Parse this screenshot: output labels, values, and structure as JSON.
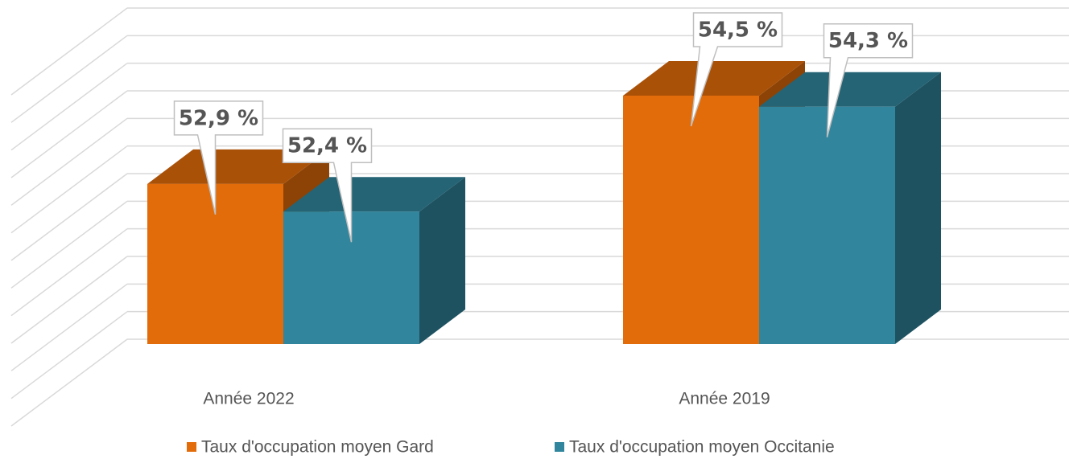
{
  "chart_data": {
    "type": "bar3d",
    "categories": [
      "Année 2022",
      "Année 2019"
    ],
    "series": [
      {
        "name": "Taux d'occupation moyen Gard",
        "color": "#e36c0a",
        "values": [
          52.9,
          54.5
        ],
        "value_labels": [
          "52,9 %",
          "54,5 %"
        ]
      },
      {
        "name": "Taux d'occupation moyen Occitanie",
        "color": "#31859c",
        "values": [
          52.4,
          54.3
        ],
        "value_labels": [
          "52,4 %",
          "54,3 %"
        ]
      }
    ],
    "ylim": [
      50,
      56
    ],
    "yticks": [
      50,
      50.5,
      51,
      51.5,
      52,
      52.5,
      53,
      53.5,
      54,
      54.5,
      55,
      55.5,
      56
    ],
    "grid": true,
    "legend": "bottom"
  }
}
